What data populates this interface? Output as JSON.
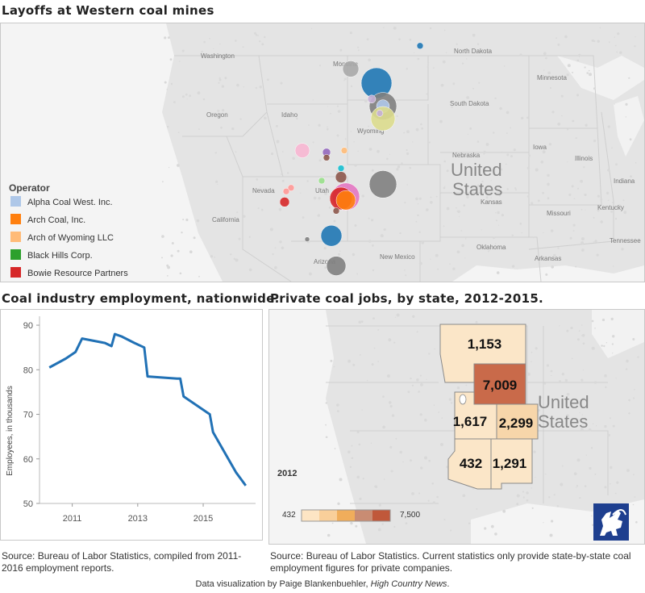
{
  "titles": {
    "map": "Layoffs at Western coal mines",
    "employment": "Coal industry employment, nationwide.",
    "jobs": "Private coal jobs, by state, 2012-2015."
  },
  "map_labels": {
    "washington": "Washington",
    "oregon": "Oregon",
    "idaho": "Idaho",
    "montana": "Montana",
    "wyoming": "Wyoming",
    "nevada": "Nevada",
    "utah": "Utah",
    "california": "California",
    "arizona": "Arizona",
    "new_mexico": "New\nMexico",
    "north_dakota": "North\nDakota",
    "south_dakota": "South\nDakota",
    "nebraska": "Nebraska",
    "kansas": "Kansas",
    "iowa": "Iowa",
    "minnesota": "Minnesota",
    "illinois": "Illinois",
    "indiana": "Indiana",
    "kentucky": "Kentucky",
    "tennessee": "Tennessee",
    "oklahoma": "Oklahoma",
    "arkansas": "Arkansas",
    "missouri": "Missouri",
    "united": "United",
    "states": "States"
  },
  "legend": {
    "title": "Operator",
    "items": [
      {
        "label": "Alpha Coal West. Inc.",
        "color": "#aec7e8"
      },
      {
        "label": "Arch Coal, Inc.",
        "color": "#ff7f0e"
      },
      {
        "label": "Arch of Wyoming LLC",
        "color": "#ffbb78"
      },
      {
        "label": "Black Hills Corp.",
        "color": "#2ca02c"
      },
      {
        "label": "Bowie Resource Partners",
        "color": "#d62728"
      }
    ]
  },
  "chart_data": [
    {
      "type": "line",
      "title": "Coal industry employment, nationwide.",
      "ylabel": "Employees, in thousands",
      "xlabel": "",
      "ylim": [
        50,
        92
      ],
      "xlim": [
        2010.0,
        2016.6
      ],
      "yticks": [
        50,
        60,
        70,
        80,
        90
      ],
      "xticks": [
        2011,
        2013,
        2015
      ],
      "line_color": "#2171b5",
      "x": [
        2010.3,
        2010.8,
        2011.1,
        2011.3,
        2012.0,
        2012.2,
        2012.3,
        2012.5,
        2012.9,
        2013.2,
        2013.3,
        2014.2,
        2014.3,
        2014.4,
        2015.2,
        2015.3,
        2016.0,
        2016.3
      ],
      "y": [
        80.5,
        82.5,
        84,
        87,
        86,
        85.3,
        88,
        87.5,
        86,
        85,
        78.5,
        78,
        78,
        74,
        70,
        66,
        57,
        54
      ]
    },
    {
      "type": "choropleth",
      "title": "Private coal jobs, by state, 2012-2015.",
      "year": "2012",
      "states": [
        "Montana",
        "Wyoming",
        "Utah",
        "Colorado",
        "Arizona",
        "New Mexico"
      ],
      "values": [
        1153,
        7009,
        1617,
        2299,
        432,
        1291
      ],
      "labels": [
        "1,153",
        "7,009",
        "1,617",
        "2,299",
        "432",
        "1,291"
      ],
      "scale": {
        "min": 432,
        "max": 7500,
        "min_label": "432",
        "max_label": "7,500",
        "colors": [
          "#fde5c4",
          "#f9cf9a",
          "#f0ad5b",
          "#c98c73",
          "#c0583a"
        ]
      }
    }
  ],
  "circles": [
    {
      "name": "Montana gray",
      "color": "#a9a9a9",
      "lon": -107.3,
      "lat": 46.3,
      "r": 10
    },
    {
      "name": "Montana blue",
      "color": "#1f77b4",
      "lon": -105.7,
      "lat": 45.5,
      "r": 19
    },
    {
      "name": "ND dot",
      "color": "#1f77b4",
      "lon": -103.0,
      "lat": 47.6,
      "r": 4
    },
    {
      "name": "Powder River gray",
      "color": "#7f7f7f",
      "lon": -105.3,
      "lat": 44.2,
      "r": 17
    },
    {
      "name": "Powder River lightblue",
      "color": "#aec7e8",
      "lon": -105.3,
      "lat": 44.2,
      "r": 8
    },
    {
      "name": "Powder River olive",
      "color": "#dbdb8d",
      "lon": -105.3,
      "lat": 43.5,
      "r": 15
    },
    {
      "name": "Powder River lavender",
      "color": "#c5b0d5",
      "lon": -106.0,
      "lat": 44.6,
      "r": 5
    },
    {
      "name": "Powder River lavender 2",
      "color": "#c5b0d5",
      "lon": -105.5,
      "lat": 43.8,
      "r": 4
    },
    {
      "name": "Wyoming pink",
      "color": "#f7b6d2",
      "lon": -110.3,
      "lat": 41.7,
      "r": 9
    },
    {
      "name": "Wyoming purple",
      "color": "#9467bd",
      "lon": -108.8,
      "lat": 41.6,
      "r": 5
    },
    {
      "name": "Wyoming brown",
      "color": "#8c564b",
      "lon": -108.8,
      "lat": 41.3,
      "r": 4
    },
    {
      "name": "Wyoming orange",
      "color": "#ffbb78",
      "lon": -107.7,
      "lat": 41.7,
      "r": 4
    },
    {
      "name": "Colorado teal",
      "color": "#17becf",
      "lon": -107.9,
      "lat": 40.7,
      "r": 4
    },
    {
      "name": "Colorado brown",
      "color": "#8c564b",
      "lon": -107.9,
      "lat": 40.2,
      "r": 7
    },
    {
      "name": "Colorado green",
      "color": "#98df8a",
      "lon": -109.1,
      "lat": 40.0,
      "r": 4
    },
    {
      "name": "Colorado gray",
      "color": "#7f7f7f",
      "lon": -105.3,
      "lat": 39.8,
      "r": 17
    },
    {
      "name": "Colorado pink big",
      "color": "#e377c2",
      "lon": -107.6,
      "lat": 39.1,
      "r": 17
    },
    {
      "name": "Colorado red",
      "color": "#d62728",
      "lon": -107.9,
      "lat": 39.0,
      "r": 14
    },
    {
      "name": "Colorado orange",
      "color": "#ff7f0e",
      "lon": -107.6,
      "lat": 38.9,
      "r": 12
    },
    {
      "name": "Utah salmon",
      "color": "#ff9896",
      "lon": -111.0,
      "lat": 39.6,
      "r": 4
    },
    {
      "name": "Utah salmon 2",
      "color": "#ff9896",
      "lon": -111.3,
      "lat": 39.4,
      "r": 4
    },
    {
      "name": "Utah red",
      "color": "#d62728",
      "lon": -111.4,
      "lat": 38.8,
      "r": 6
    },
    {
      "name": "Colorado small brown",
      "color": "#8c564b",
      "lon": -108.2,
      "lat": 38.3,
      "r": 4
    },
    {
      "name": "NM blue",
      "color": "#1f77b4",
      "lon": -108.5,
      "lat": 36.9,
      "r": 13
    },
    {
      "name": "NM small",
      "color": "#7f7f7f",
      "lon": -110.0,
      "lat": 36.7,
      "r": 3
    },
    {
      "name": "NM gray",
      "color": "#7f7f7f",
      "lon": -108.2,
      "lat": 35.2,
      "r": 12
    }
  ],
  "sources": {
    "employment": "Source: Bureau of Labor Statistics, compiled from 2011-2016 employment reports.",
    "jobs": "Source: Bureau of Labor Statistics. Current statistics only provide state-by-state coal employment figures for private companies."
  },
  "footer": {
    "prefix": "Data visualization by Paige Blankenbuehler, ",
    "publication": "High Country News",
    "suffix": "."
  }
}
